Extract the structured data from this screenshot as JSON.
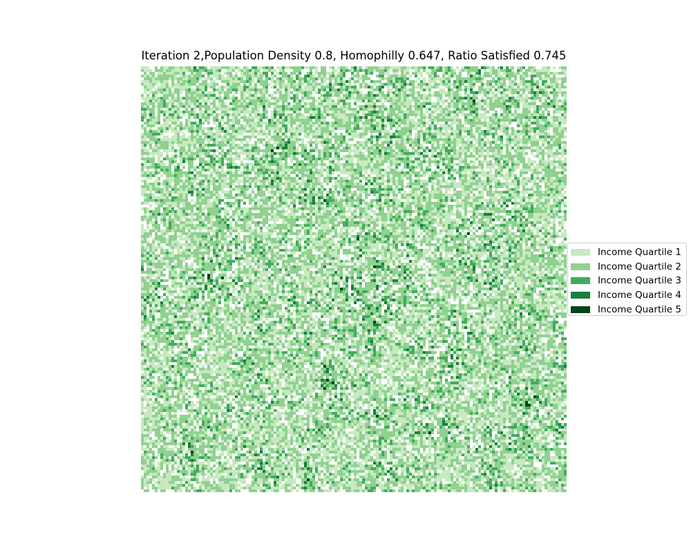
{
  "chart_data": {
    "type": "heatmap",
    "title": "Iteration 2,Population Density 0.8, Homophilly 0.647, Ratio Satisfied 0.745",
    "grid_size": [
      154,
      154
    ],
    "empty_fraction": 0.2,
    "axes_visible": false,
    "legend_placement": "center-right",
    "categories": [
      "Income Quartile 1",
      "Income Quartile 2",
      "Income Quartile 3",
      "Income Quartile 4",
      "Income Quartile 5"
    ],
    "category_weights": [
      0.42,
      0.34,
      0.12,
      0.07,
      0.05
    ],
    "colors": [
      "#c7e9c0",
      "#8fd18f",
      "#41ab5d",
      "#17803f",
      "#00441b"
    ],
    "empty_color": "#ffffff"
  }
}
